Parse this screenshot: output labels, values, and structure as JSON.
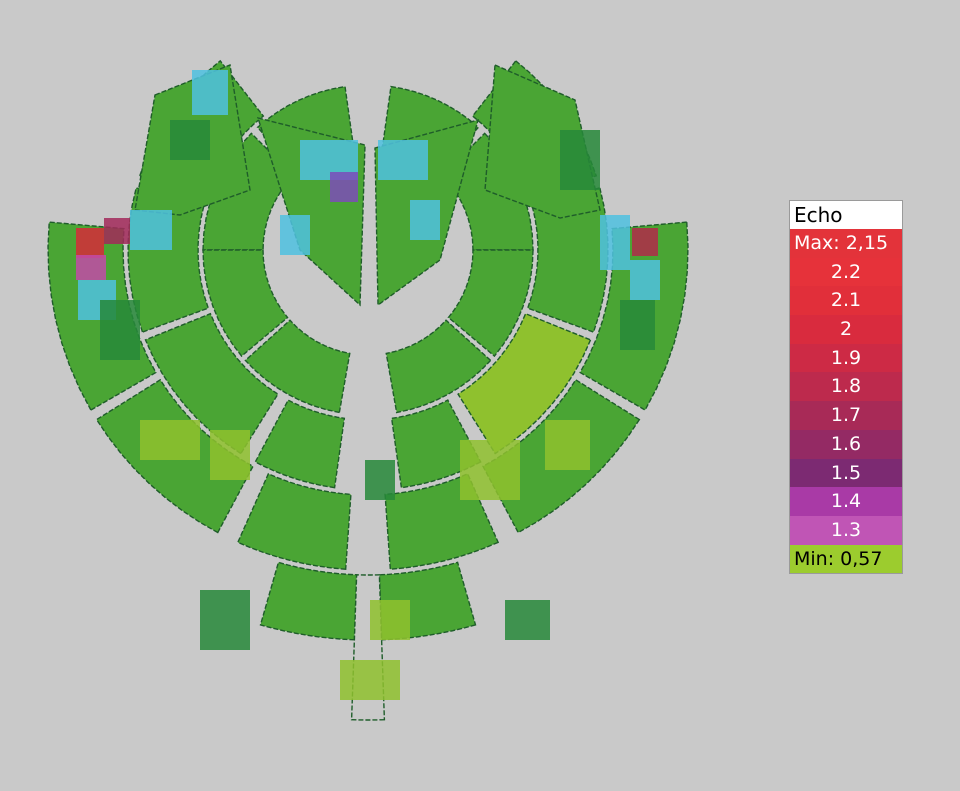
{
  "legend": {
    "title": "Echo",
    "max_label": "Max:  2,15",
    "min_label": "Min:  0,57",
    "steps": [
      {
        "label": "2.2",
        "color": "#e6323a"
      },
      {
        "label": "2.1",
        "color": "#e12f3a"
      },
      {
        "label": "2",
        "color": "#d92b3e"
      },
      {
        "label": "1.9",
        "color": "#cd2a45"
      },
      {
        "label": "1.8",
        "color": "#bd2a4d"
      },
      {
        "label": "1.7",
        "color": "#a82a57"
      },
      {
        "label": "1.6",
        "color": "#942a64"
      },
      {
        "label": "1.5",
        "color": "#7c2a72"
      },
      {
        "label": "1.4",
        "color": "#a93aa6"
      },
      {
        "label": "1.3",
        "color": "#c055b5"
      }
    ],
    "max_color": "#e3333a",
    "min_color": "#9ccc2e"
  },
  "colors": {
    "background": "#c9c9c9",
    "tissue_green": "#4aa534",
    "light_green": "#8fc12e",
    "dark_green": "#27883a",
    "cyan": "#4fc1e0",
    "magenta": "#c24aa8",
    "red": "#d62a3a"
  }
}
